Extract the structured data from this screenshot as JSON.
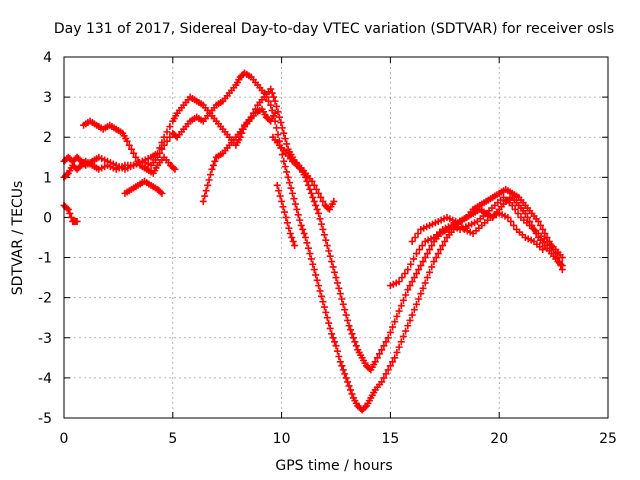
{
  "chart_data": {
    "type": "scatter",
    "title": "Day 131 of 2017, Sidereal Day-to-day VTEC variation (SDTVAR) for receiver osls",
    "xlabel": "GPS time / hours",
    "ylabel": "SDTVAR / TECUs",
    "xlim": [
      0,
      25
    ],
    "ylim": [
      -5,
      4
    ],
    "xticks": [
      "0",
      "5",
      "10",
      "15",
      "20",
      "25"
    ],
    "yticks": [
      "4",
      "3",
      "2",
      "1",
      "0",
      "-1",
      "-2",
      "-3",
      "-4",
      "-5"
    ],
    "grid": true,
    "marker": "plus",
    "color": "#ff0000",
    "series": [
      {
        "x": [
          0.0,
          0.2,
          0.4,
          0.6,
          0.8,
          1.0,
          1.3,
          1.6,
          2.0,
          2.4,
          2.8,
          3.2,
          3.6,
          4.0,
          4.3,
          4.6,
          5.0,
          5.2,
          5.5,
          5.8,
          6.1,
          6.4,
          6.7,
          7.0,
          7.3,
          7.6,
          7.9,
          8.1,
          8.3,
          8.6,
          8.9,
          9.2,
          9.5,
          9.7,
          9.9,
          10.1,
          10.3,
          10.5,
          10.7,
          10.9,
          11.1,
          11.3,
          11.5,
          11.7,
          11.9,
          12.1,
          12.3,
          12.5,
          12.7,
          12.9,
          13.1,
          13.3,
          13.5,
          13.7,
          13.9,
          14.1,
          14.3,
          14.6,
          14.9,
          15.2,
          15.5,
          15.8,
          16.1,
          16.4,
          16.7,
          17.0,
          17.3,
          17.6,
          17.9,
          18.2,
          18.5,
          18.8,
          19.1,
          19.4,
          19.7,
          20.0,
          20.3,
          20.6,
          20.9,
          21.2,
          21.5,
          21.8,
          22.1,
          22.4,
          22.7,
          22.9
        ],
        "y": [
          1.0,
          1.1,
          1.3,
          1.2,
          1.3,
          1.4,
          1.3,
          1.2,
          1.3,
          1.2,
          1.3,
          1.3,
          1.4,
          1.3,
          1.5,
          1.8,
          2.1,
          2.0,
          2.2,
          2.4,
          2.5,
          2.4,
          2.6,
          2.8,
          2.9,
          3.1,
          3.3,
          3.5,
          3.6,
          3.5,
          3.3,
          3.1,
          2.8,
          2.4,
          1.9,
          1.4,
          1.0,
          0.6,
          0.2,
          -0.2,
          -0.5,
          -0.9,
          -1.3,
          -1.7,
          -2.1,
          -2.5,
          -2.9,
          -3.2,
          -3.6,
          -3.9,
          -4.2,
          -4.5,
          -4.7,
          -4.8,
          -4.7,
          -4.5,
          -4.3,
          -4.1,
          -3.8,
          -3.5,
          -3.1,
          -2.7,
          -2.3,
          -1.9,
          -1.5,
          -1.1,
          -0.8,
          -0.5,
          -0.3,
          -0.1,
          0.0,
          0.2,
          0.3,
          0.4,
          0.5,
          0.6,
          0.7,
          0.6,
          0.5,
          0.3,
          0.1,
          -0.1,
          -0.4,
          -0.7,
          -1.0,
          -1.3
        ]
      },
      {
        "x": [
          0.0,
          0.2,
          0.4,
          0.6,
          0.8,
          1.0,
          1.3,
          1.6,
          2.0,
          2.4,
          2.8,
          3.2,
          3.6,
          4.0,
          4.3,
          4.6,
          5.0,
          5.2,
          5.5,
          5.8,
          6.1,
          6.4,
          6.7,
          7.0,
          7.3,
          7.6,
          7.9,
          8.1,
          8.3,
          8.6,
          8.9,
          9.2,
          9.5,
          9.7,
          9.9,
          10.1,
          10.3,
          10.5,
          10.7,
          10.9,
          11.1,
          11.3,
          11.5,
          11.7,
          11.9,
          12.1,
          12.3,
          12.5,
          12.7,
          12.9,
          13.1,
          13.3,
          13.5,
          13.7,
          13.9,
          14.1,
          14.3,
          14.6,
          14.9,
          15.2,
          15.5,
          15.8,
          16.1,
          16.4,
          16.7,
          17.0,
          17.3,
          17.6,
          17.9,
          18.2,
          18.5,
          18.8,
          19.1,
          19.4,
          19.7,
          20.0,
          20.3,
          20.6,
          20.9,
          21.2,
          21.5,
          21.8,
          22.1,
          22.4,
          22.7,
          22.9
        ],
        "y": [
          1.4,
          1.5,
          1.4,
          1.5,
          1.4,
          1.3,
          1.4,
          1.5,
          1.4,
          1.3,
          1.2,
          1.3,
          1.4,
          1.5,
          1.6,
          2.0,
          2.4,
          2.6,
          2.8,
          3.0,
          2.9,
          2.8,
          2.6,
          2.4,
          2.2,
          2.0,
          1.8,
          2.0,
          2.3,
          2.5,
          2.8,
          3.0,
          3.2,
          2.9,
          2.5,
          2.1,
          1.7,
          1.5,
          1.3,
          1.2,
          1.0,
          0.7,
          0.4,
          0.1,
          -0.3,
          -0.7,
          -1.1,
          -1.5,
          -1.9,
          -2.3,
          -2.7,
          -3.0,
          -3.3,
          -3.5,
          -3.7,
          -3.8,
          -3.6,
          -3.3,
          -3.0,
          -2.6,
          -2.2,
          -1.8,
          -1.5,
          -1.2,
          -0.9,
          -0.6,
          -0.4,
          -0.3,
          -0.2,
          -0.1,
          0.0,
          0.1,
          0.2,
          0.1,
          0.0,
          0.2,
          0.4,
          0.5,
          0.3,
          0.1,
          -0.2,
          -0.5,
          -0.7,
          -0.9,
          -1.1,
          -1.2
        ]
      },
      {
        "x": [
          0.9,
          1.2,
          1.5,
          1.8,
          2.1,
          2.4,
          2.7,
          2.9,
          3.2,
          3.5,
          3.8,
          4.1,
          4.3,
          4.6,
          4.9,
          5.1
        ],
        "y": [
          2.3,
          2.4,
          2.3,
          2.2,
          2.3,
          2.2,
          2.1,
          1.9,
          1.6,
          1.3,
          1.2,
          1.1,
          1.3,
          1.5,
          1.3,
          1.2
        ]
      },
      {
        "x": [
          2.8,
          3.1,
          3.4,
          3.7,
          4.0,
          4.3,
          4.5
        ],
        "y": [
          0.6,
          0.7,
          0.8,
          0.9,
          0.8,
          0.7,
          0.6
        ]
      },
      {
        "x": [
          6.4,
          6.6,
          6.8,
          7.0,
          7.3,
          7.6,
          7.9,
          8.2,
          8.5,
          8.8,
          9.1,
          9.3,
          9.5,
          9.7
        ],
        "y": [
          0.4,
          0.8,
          1.2,
          1.5,
          1.6,
          1.8,
          2.0,
          2.2,
          2.4,
          2.6,
          2.7,
          2.5,
          2.4,
          2.6
        ]
      },
      {
        "x": [
          9.6,
          9.9,
          10.2,
          10.5,
          10.8,
          11.1,
          11.4,
          11.7,
          12.0,
          12.2,
          12.4
        ],
        "y": [
          2.0,
          1.8,
          1.6,
          1.4,
          1.3,
          1.1,
          0.9,
          0.6,
          0.3,
          0.2,
          0.4
        ]
      },
      {
        "x": [
          9.8,
          10.0,
          10.2,
          10.4,
          10.6
        ],
        "y": [
          0.8,
          0.4,
          0.0,
          -0.4,
          -0.7
        ]
      },
      {
        "x": [
          0.0,
          0.2,
          0.4,
          0.6
        ],
        "y": [
          0.3,
          0.2,
          -0.1,
          -0.1
        ]
      },
      {
        "x": [
          15.0,
          15.4,
          15.8,
          16.2,
          16.6,
          17.0,
          17.4,
          17.8,
          18.2,
          18.6,
          19.0,
          19.4,
          19.8,
          20.2,
          20.6,
          21.0,
          21.4,
          21.8,
          22.2,
          22.6,
          22.9
        ],
        "y": [
          -1.7,
          -1.6,
          -1.3,
          -0.9,
          -0.6,
          -0.5,
          -0.3,
          -0.2,
          -0.3,
          -0.2,
          -0.1,
          0.1,
          0.3,
          0.5,
          0.3,
          0.0,
          -0.2,
          -0.4,
          -0.6,
          -0.8,
          -1.0
        ]
      },
      {
        "x": [
          16.0,
          16.4,
          16.8,
          17.2,
          17.6,
          18.0,
          18.4,
          18.8,
          19.2,
          19.6,
          20.0,
          20.4,
          20.8,
          21.2,
          21.6,
          22.0
        ],
        "y": [
          -0.6,
          -0.3,
          -0.2,
          -0.1,
          0.0,
          -0.1,
          -0.3,
          -0.4,
          -0.2,
          0.0,
          0.1,
          0.0,
          -0.3,
          -0.5,
          -0.6,
          -0.8
        ]
      }
    ]
  }
}
